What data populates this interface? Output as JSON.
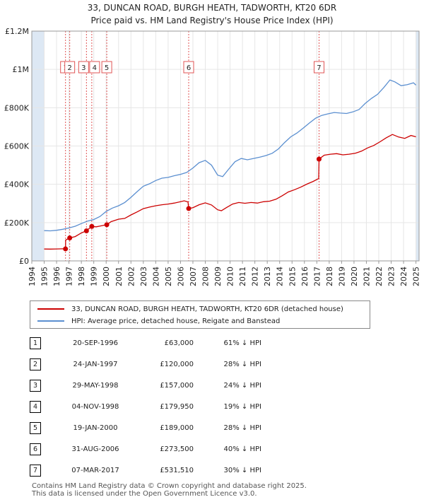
{
  "title_line1": "33, DUNCAN ROAD, BURGH HEATH, TADWORTH, KT20 6DR",
  "title_line2": "Price paid vs. HM Land Registry's House Price Index (HPI)",
  "colors": {
    "property": "#cc0000",
    "hpi": "#5b8fd0",
    "shade": "#dde8f4",
    "marker_line": "#e05555"
  },
  "chart_data": {
    "type": "line",
    "title": "33, DUNCAN ROAD, BURGH HEATH, TADWORTH, KT20 6DR",
    "subtitle": "Price paid vs. HM Land Registry's House Price Index (HPI)",
    "xlabel": "",
    "ylabel": "",
    "xlim": [
      1994,
      2025.25
    ],
    "ylim": [
      0,
      1200000
    ],
    "yticks": [
      0,
      200000,
      400000,
      600000,
      800000,
      1000000,
      1200000
    ],
    "ytick_labels": [
      "£0",
      "£200K",
      "£400K",
      "£600K",
      "£800K",
      "£1M",
      "£1.2M"
    ],
    "xticks": [
      1994,
      1995,
      1996,
      1997,
      1998,
      1999,
      2000,
      2001,
      2002,
      2003,
      2004,
      2005,
      2006,
      2007,
      2008,
      2009,
      2010,
      2011,
      2012,
      2013,
      2014,
      2015,
      2016,
      2017,
      2018,
      2019,
      2020,
      2021,
      2022,
      2023,
      2024,
      2025
    ],
    "grid": true,
    "shaded_ranges": [
      [
        1994,
        1995.0
      ],
      [
        2025.0,
        2025.25
      ]
    ],
    "series": [
      {
        "name": "33, DUNCAN ROAD, BURGH HEATH, TADWORTH, KT20 6DR (detached house)",
        "color": "#cc0000",
        "points": [
          [
            1995.0,
            62000
          ],
          [
            1995.5,
            61500
          ],
          [
            1996.0,
            62500
          ],
          [
            1996.5,
            63000
          ],
          [
            1996.72,
            63000
          ],
          [
            1996.73,
            109000
          ],
          [
            1997.06,
            120000
          ],
          [
            1997.5,
            127000
          ],
          [
            1998.0,
            146000
          ],
          [
            1998.41,
            157000
          ],
          [
            1998.6,
            168000
          ],
          [
            1998.84,
            179950
          ],
          [
            1999.2,
            178000
          ],
          [
            1999.5,
            182000
          ],
          [
            2000.05,
            189000
          ],
          [
            2000.4,
            205000
          ],
          [
            2001.0,
            218000
          ],
          [
            2001.5,
            222000
          ],
          [
            2002.0,
            240000
          ],
          [
            2002.5,
            256000
          ],
          [
            2003.0,
            273000
          ],
          [
            2003.5,
            281000
          ],
          [
            2004.0,
            288000
          ],
          [
            2004.5,
            293000
          ],
          [
            2005.0,
            297000
          ],
          [
            2005.5,
            302000
          ],
          [
            2006.0,
            309000
          ],
          [
            2006.3,
            314000
          ],
          [
            2006.6,
            308000
          ],
          [
            2006.66,
            273500
          ],
          [
            2007.0,
            278000
          ],
          [
            2007.5,
            293000
          ],
          [
            2008.0,
            303000
          ],
          [
            2008.5,
            292000
          ],
          [
            2009.0,
            267000
          ],
          [
            2009.3,
            262000
          ],
          [
            2009.7,
            278000
          ],
          [
            2010.2,
            297000
          ],
          [
            2010.7,
            305000
          ],
          [
            2011.2,
            301000
          ],
          [
            2011.7,
            305000
          ],
          [
            2012.2,
            302000
          ],
          [
            2012.7,
            309000
          ],
          [
            2013.2,
            312000
          ],
          [
            2013.7,
            322000
          ],
          [
            2014.2,
            340000
          ],
          [
            2014.7,
            360000
          ],
          [
            2015.2,
            372000
          ],
          [
            2015.7,
            385000
          ],
          [
            2016.2,
            401000
          ],
          [
            2016.7,
            415000
          ],
          [
            2017.15,
            430000
          ],
          [
            2017.18,
            531510
          ],
          [
            2017.6,
            552000
          ],
          [
            2018.1,
            557000
          ],
          [
            2018.6,
            560000
          ],
          [
            2019.1,
            554000
          ],
          [
            2019.6,
            557000
          ],
          [
            2020.1,
            562000
          ],
          [
            2020.6,
            573000
          ],
          [
            2021.1,
            590000
          ],
          [
            2021.6,
            603000
          ],
          [
            2022.1,
            622000
          ],
          [
            2022.6,
            643000
          ],
          [
            2023.1,
            660000
          ],
          [
            2023.6,
            647000
          ],
          [
            2024.1,
            640000
          ],
          [
            2024.6,
            655000
          ],
          [
            2025.0,
            648000
          ]
        ]
      },
      {
        "name": "HPI: Average price, detached house, Reigate and Banstead",
        "color": "#5b8fd0",
        "points": [
          [
            1995.0,
            158000
          ],
          [
            1995.5,
            157000
          ],
          [
            1996.0,
            160000
          ],
          [
            1996.5,
            165000
          ],
          [
            1997.0,
            172000
          ],
          [
            1997.5,
            181000
          ],
          [
            1998.0,
            195000
          ],
          [
            1998.5,
            208000
          ],
          [
            1999.0,
            216000
          ],
          [
            1999.5,
            232000
          ],
          [
            2000.0,
            258000
          ],
          [
            2000.5,
            276000
          ],
          [
            2001.0,
            288000
          ],
          [
            2001.5,
            305000
          ],
          [
            2002.0,
            332000
          ],
          [
            2002.5,
            362000
          ],
          [
            2003.0,
            390000
          ],
          [
            2003.5,
            403000
          ],
          [
            2004.0,
            420000
          ],
          [
            2004.5,
            432000
          ],
          [
            2005.0,
            436000
          ],
          [
            2005.5,
            445000
          ],
          [
            2006.0,
            452000
          ],
          [
            2006.5,
            462000
          ],
          [
            2007.0,
            485000
          ],
          [
            2007.5,
            513000
          ],
          [
            2008.0,
            525000
          ],
          [
            2008.5,
            500000
          ],
          [
            2009.0,
            448000
          ],
          [
            2009.4,
            440000
          ],
          [
            2009.9,
            480000
          ],
          [
            2010.4,
            518000
          ],
          [
            2010.9,
            535000
          ],
          [
            2011.4,
            528000
          ],
          [
            2011.9,
            535000
          ],
          [
            2012.4,
            542000
          ],
          [
            2012.9,
            550000
          ],
          [
            2013.4,
            562000
          ],
          [
            2013.9,
            585000
          ],
          [
            2014.4,
            618000
          ],
          [
            2014.9,
            648000
          ],
          [
            2015.4,
            668000
          ],
          [
            2015.9,
            693000
          ],
          [
            2016.4,
            720000
          ],
          [
            2016.9,
            745000
          ],
          [
            2017.4,
            760000
          ],
          [
            2017.9,
            768000
          ],
          [
            2018.4,
            775000
          ],
          [
            2018.9,
            772000
          ],
          [
            2019.4,
            770000
          ],
          [
            2019.9,
            778000
          ],
          [
            2020.4,
            790000
          ],
          [
            2020.9,
            822000
          ],
          [
            2021.4,
            848000
          ],
          [
            2021.9,
            870000
          ],
          [
            2022.4,
            905000
          ],
          [
            2022.9,
            945000
          ],
          [
            2023.3,
            935000
          ],
          [
            2023.8,
            915000
          ],
          [
            2024.3,
            920000
          ],
          [
            2024.8,
            930000
          ],
          [
            2025.0,
            918000
          ]
        ]
      }
    ],
    "sales": [
      {
        "label": "1",
        "x": 1996.72,
        "y": 63000
      },
      {
        "label": "2",
        "x": 1997.06,
        "y": 120000
      },
      {
        "label": "3",
        "x": 1998.41,
        "y": 157000
      },
      {
        "label": "4",
        "x": 1998.84,
        "y": 179950
      },
      {
        "label": "5",
        "x": 2000.05,
        "y": 189000
      },
      {
        "label": "6",
        "x": 2006.66,
        "y": 273500
      },
      {
        "label": "7",
        "x": 2017.18,
        "y": 531510
      }
    ]
  },
  "legend": {
    "property": "33, DUNCAN ROAD, BURGH HEATH, TADWORTH, KT20 6DR (detached house)",
    "hpi": "HPI: Average price, detached house, Reigate and Banstead"
  },
  "transactions": [
    {
      "num": "1",
      "date": "20-SEP-1996",
      "price": "£63,000",
      "hpi": "61% ↓ HPI"
    },
    {
      "num": "2",
      "date": "24-JAN-1997",
      "price": "£120,000",
      "hpi": "28% ↓ HPI"
    },
    {
      "num": "3",
      "date": "29-MAY-1998",
      "price": "£157,000",
      "hpi": "24% ↓ HPI"
    },
    {
      "num": "4",
      "date": "04-NOV-1998",
      "price": "£179,950",
      "hpi": "19% ↓ HPI"
    },
    {
      "num": "5",
      "date": "19-JAN-2000",
      "price": "£189,000",
      "hpi": "28% ↓ HPI"
    },
    {
      "num": "6",
      "date": "31-AUG-2006",
      "price": "£273,500",
      "hpi": "40% ↓ HPI"
    },
    {
      "num": "7",
      "date": "07-MAR-2017",
      "price": "£531,510",
      "hpi": "30% ↓ HPI"
    }
  ],
  "footer": {
    "line1": "Contains HM Land Registry data © Crown copyright and database right 2025.",
    "line2": "This data is licensed under the Open Government Licence v3.0."
  }
}
